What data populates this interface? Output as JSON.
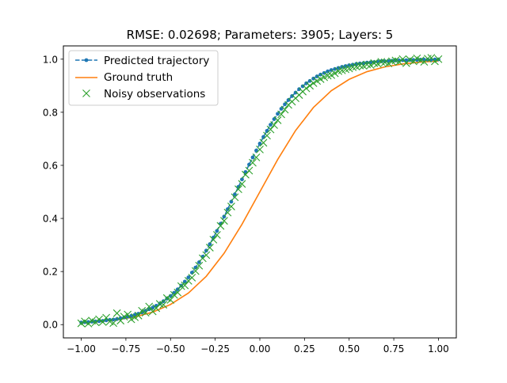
{
  "chart_data": {
    "type": "line",
    "title": "RMSE: 0.02698; Parameters: 3905; Layers: 5",
    "xlabel": "",
    "ylabel": "",
    "xlim": [
      -1.1,
      1.1
    ],
    "ylim": [
      -0.05,
      1.05
    ],
    "xticks": [
      -1.0,
      -0.75,
      -0.5,
      -0.25,
      0.0,
      0.25,
      0.5,
      0.75,
      1.0
    ],
    "xtick_labels": [
      "−1.00",
      "−0.75",
      "−0.50",
      "−0.25",
      "0.00",
      "0.25",
      "0.50",
      "0.75",
      "1.00"
    ],
    "yticks": [
      0.0,
      0.2,
      0.4,
      0.6,
      0.8,
      1.0
    ],
    "ytick_labels": [
      "0.0",
      "0.2",
      "0.4",
      "0.6",
      "0.8",
      "1.0"
    ],
    "grid": false,
    "legend_position": "top-left",
    "legend": {
      "predicted": "Predicted trajectory",
      "truth": "Ground truth",
      "observed": "Noisy observations"
    },
    "colors": {
      "predicted": "#1f77b4",
      "truth": "#ff7f0e",
      "observed": "#2ca02c"
    },
    "series": [
      {
        "name": "Predicted trajectory",
        "style": "dashed-dots",
        "x": [
          -1.0,
          -0.98,
          -0.96,
          -0.94,
          -0.92,
          -0.9,
          -0.88,
          -0.86,
          -0.84,
          -0.82,
          -0.8,
          -0.78,
          -0.76,
          -0.74,
          -0.72,
          -0.7,
          -0.68,
          -0.66,
          -0.64,
          -0.62,
          -0.6,
          -0.58,
          -0.56,
          -0.54,
          -0.52,
          -0.5,
          -0.48,
          -0.46,
          -0.44,
          -0.42,
          -0.4,
          -0.38,
          -0.36,
          -0.34,
          -0.32,
          -0.3,
          -0.28,
          -0.26,
          -0.24,
          -0.22,
          -0.2,
          -0.18,
          -0.16,
          -0.14,
          -0.12,
          -0.1,
          -0.08,
          -0.06,
          -0.04,
          -0.02,
          0.0,
          0.02,
          0.04,
          0.06,
          0.08,
          0.1,
          0.12,
          0.14,
          0.16,
          0.18,
          0.2,
          0.22,
          0.24,
          0.26,
          0.28,
          0.3,
          0.32,
          0.34,
          0.36,
          0.38,
          0.4,
          0.42,
          0.44,
          0.46,
          0.48,
          0.5,
          0.52,
          0.54,
          0.56,
          0.58,
          0.6,
          0.62,
          0.64,
          0.66,
          0.68,
          0.7,
          0.72,
          0.74,
          0.76,
          0.78,
          0.8,
          0.82,
          0.84,
          0.86,
          0.88,
          0.9,
          0.92,
          0.94,
          0.96,
          0.98,
          1.0
        ],
        "y": [
          0.008,
          0.009,
          0.01,
          0.011,
          0.012,
          0.013,
          0.014,
          0.016,
          0.018,
          0.019,
          0.021,
          0.024,
          0.027,
          0.03,
          0.033,
          0.037,
          0.041,
          0.046,
          0.052,
          0.058,
          0.064,
          0.071,
          0.079,
          0.088,
          0.098,
          0.108,
          0.12,
          0.133,
          0.147,
          0.162,
          0.178,
          0.196,
          0.215,
          0.235,
          0.256,
          0.279,
          0.303,
          0.328,
          0.353,
          0.38,
          0.407,
          0.435,
          0.463,
          0.491,
          0.519,
          0.547,
          0.575,
          0.603,
          0.63,
          0.656,
          0.682,
          0.707,
          0.73,
          0.753,
          0.774,
          0.794,
          0.813,
          0.83,
          0.846,
          0.861,
          0.874,
          0.887,
          0.898,
          0.909,
          0.918,
          0.927,
          0.935,
          0.942,
          0.948,
          0.954,
          0.959,
          0.963,
          0.967,
          0.971,
          0.974,
          0.977,
          0.979,
          0.982,
          0.984,
          0.985,
          0.987,
          0.988,
          0.989,
          0.991,
          0.992,
          0.992,
          0.993,
          0.994,
          0.995,
          0.995,
          0.996,
          0.996,
          0.997,
          0.997,
          0.997,
          0.998,
          0.998,
          0.998,
          0.998,
          0.999,
          0.999
        ]
      },
      {
        "name": "Ground truth",
        "style": "solid",
        "x": [
          -1.0,
          -0.9,
          -0.8,
          -0.7,
          -0.6,
          -0.5,
          -0.4,
          -0.3,
          -0.2,
          -0.1,
          0.0,
          0.1,
          0.2,
          0.3,
          0.4,
          0.5,
          0.6,
          0.7,
          0.8,
          0.9,
          1.0
        ],
        "y": [
          0.007,
          0.011,
          0.018,
          0.029,
          0.047,
          0.076,
          0.119,
          0.182,
          0.269,
          0.378,
          0.5,
          0.622,
          0.731,
          0.818,
          0.881,
          0.924,
          0.953,
          0.971,
          0.982,
          0.989,
          0.993
        ]
      },
      {
        "name": "Noisy observations",
        "style": "markers-x",
        "x": [
          -1.0,
          -0.98,
          -0.96,
          -0.94,
          -0.92,
          -0.9,
          -0.88,
          -0.86,
          -0.84,
          -0.82,
          -0.8,
          -0.78,
          -0.76,
          -0.74,
          -0.72,
          -0.7,
          -0.68,
          -0.66,
          -0.64,
          -0.62,
          -0.6,
          -0.58,
          -0.56,
          -0.54,
          -0.52,
          -0.5,
          -0.48,
          -0.46,
          -0.44,
          -0.42,
          -0.4,
          -0.38,
          -0.36,
          -0.34,
          -0.32,
          -0.3,
          -0.28,
          -0.26,
          -0.24,
          -0.22,
          -0.2,
          -0.18,
          -0.16,
          -0.14,
          -0.12,
          -0.1,
          -0.08,
          -0.06,
          -0.04,
          -0.02,
          0.0,
          0.02,
          0.04,
          0.06,
          0.08,
          0.1,
          0.12,
          0.14,
          0.16,
          0.18,
          0.2,
          0.22,
          0.24,
          0.26,
          0.28,
          0.3,
          0.32,
          0.34,
          0.36,
          0.38,
          0.4,
          0.42,
          0.44,
          0.46,
          0.48,
          0.5,
          0.52,
          0.54,
          0.56,
          0.58,
          0.6,
          0.62,
          0.64,
          0.66,
          0.68,
          0.7,
          0.72,
          0.74,
          0.76,
          0.78,
          0.8,
          0.82,
          0.84,
          0.86,
          0.88,
          0.9,
          0.92,
          0.94,
          0.96,
          0.98,
          1.0
        ],
        "y": [
          0.005,
          0.012,
          0.004,
          0.015,
          0.009,
          0.02,
          0.01,
          0.026,
          0.012,
          0.006,
          0.043,
          0.015,
          0.03,
          0.038,
          0.02,
          0.028,
          0.034,
          0.052,
          0.045,
          0.068,
          0.05,
          0.062,
          0.078,
          0.075,
          0.1,
          0.093,
          0.112,
          0.121,
          0.145,
          0.148,
          0.165,
          0.177,
          0.202,
          0.222,
          0.25,
          0.262,
          0.29,
          0.32,
          0.338,
          0.372,
          0.391,
          0.422,
          0.445,
          0.48,
          0.51,
          0.53,
          0.565,
          0.58,
          0.61,
          0.63,
          0.66,
          0.685,
          0.712,
          0.735,
          0.752,
          0.77,
          0.792,
          0.81,
          0.828,
          0.84,
          0.853,
          0.865,
          0.878,
          0.89,
          0.9,
          0.91,
          0.918,
          0.925,
          0.932,
          0.938,
          0.94,
          0.947,
          0.955,
          0.958,
          0.962,
          0.965,
          0.97,
          0.972,
          0.976,
          0.975,
          0.98,
          0.978,
          0.985,
          0.983,
          0.99,
          0.988,
          0.984,
          0.992,
          0.995,
          0.99,
          1.0,
          0.985,
          0.998,
          0.992,
          1.003,
          0.996,
          0.99,
          1.002,
          1.005,
          0.992,
          1.0
        ]
      }
    ]
  }
}
